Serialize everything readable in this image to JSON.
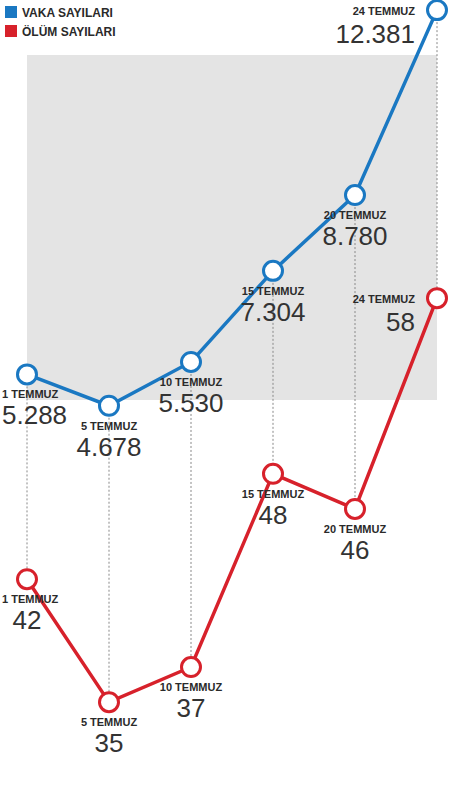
{
  "chart_data": {
    "type": "line",
    "categories": [
      "1 TEMMUZ",
      "5 TEMMUZ",
      "10 TEMMUZ",
      "15 TEMMUZ",
      "20 TEMMUZ",
      "24 TEMMUZ"
    ],
    "series": [
      {
        "name": "VAKA SAYILARI",
        "color": "#1a78c2",
        "marker": "circle",
        "values": [
          5288,
          4678,
          5530,
          7304,
          8780,
          12381
        ],
        "value_labels": [
          "5.288",
          "4.678",
          "5.530",
          "7.304",
          "8.780",
          "12.381"
        ]
      },
      {
        "name": "ÖLÜM SAYILARI",
        "color": "#d7212b",
        "marker": "circle",
        "axis": "y2",
        "values": [
          42,
          35,
          37,
          48,
          46,
          58
        ]
      }
    ],
    "ylim": [
      4400,
      12500
    ],
    "y2lim": [
      30,
      60
    ],
    "data_labels": true,
    "tick_labels": false,
    "grid": false,
    "legend": "top-left"
  }
}
